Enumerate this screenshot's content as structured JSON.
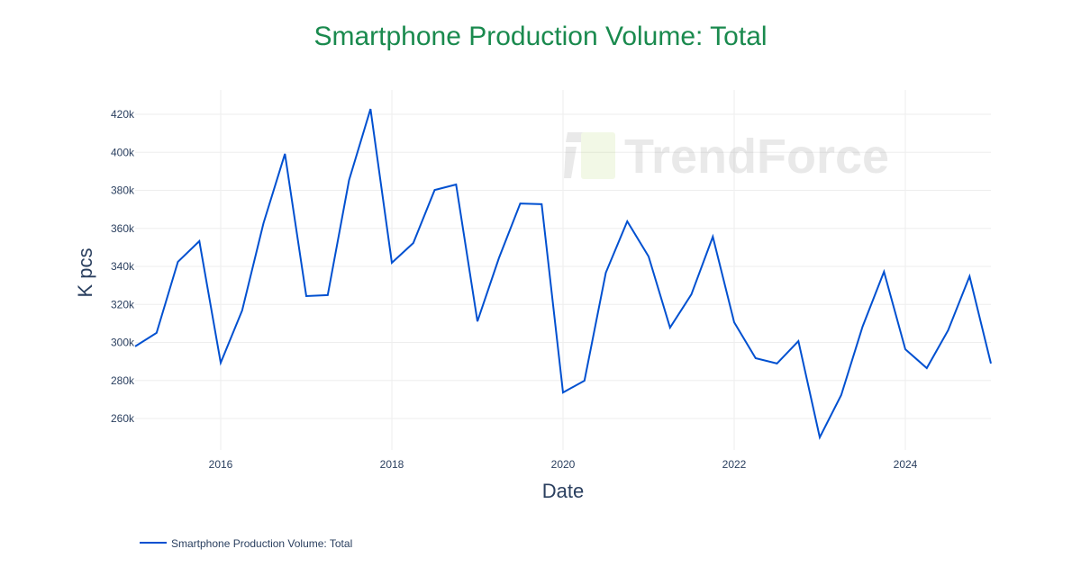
{
  "chart_data": {
    "type": "line",
    "title": "Smartphone Production Volume: Total",
    "xlabel": "Date",
    "ylabel": "K pcs",
    "xlim": [
      "2015-01-01",
      "2025-01-01"
    ],
    "ylim": [
      240,
      430
    ],
    "x_ticks": [
      "2016",
      "2018",
      "2020",
      "2022",
      "2024"
    ],
    "y_ticks": [
      260,
      280,
      300,
      320,
      340,
      360,
      380,
      400,
      420
    ],
    "y_tick_labels": [
      "260k",
      "280k",
      "300k",
      "320k",
      "340k",
      "360k",
      "380k",
      "400k",
      "420k"
    ],
    "grid": true,
    "legend_position": "bottom-left",
    "series": [
      {
        "name": "Smartphone Production Volume: Total",
        "color": "#0050d0",
        "x": [
          "2015-01",
          "2015-04",
          "2015-07",
          "2015-10",
          "2016-01",
          "2016-04",
          "2016-07",
          "2016-10",
          "2017-01",
          "2017-04",
          "2017-07",
          "2017-10",
          "2018-01",
          "2018-04",
          "2018-07",
          "2018-10",
          "2019-01",
          "2019-04",
          "2019-07",
          "2019-10",
          "2020-01",
          "2020-04",
          "2020-07",
          "2020-10",
          "2021-01",
          "2021-04",
          "2021-07",
          "2021-10",
          "2022-01",
          "2022-04",
          "2022-07",
          "2022-10",
          "2023-01",
          "2023-04",
          "2023-07",
          "2023-10",
          "2024-01",
          "2024-04",
          "2024-07",
          "2024-10",
          "2025-01"
        ],
        "values": [
          297.9,
          305.0,
          342.4,
          353.3,
          289.3,
          316.8,
          362.7,
          399.2,
          324.4,
          324.9,
          385.4,
          422.8,
          341.9,
          352.3,
          380.2,
          383.1,
          311.1,
          344.3,
          373.1,
          372.7,
          273.7,
          279.9,
          336.7,
          363.7,
          345.2,
          307.8,
          325.3,
          355.6,
          310.6,
          291.7,
          288.9,
          300.7,
          250.1,
          272.3,
          308.3,
          337.2,
          296.4,
          286.5,
          306.4,
          334.8,
          288.9
        ]
      }
    ]
  },
  "watermark": "TrendForce"
}
